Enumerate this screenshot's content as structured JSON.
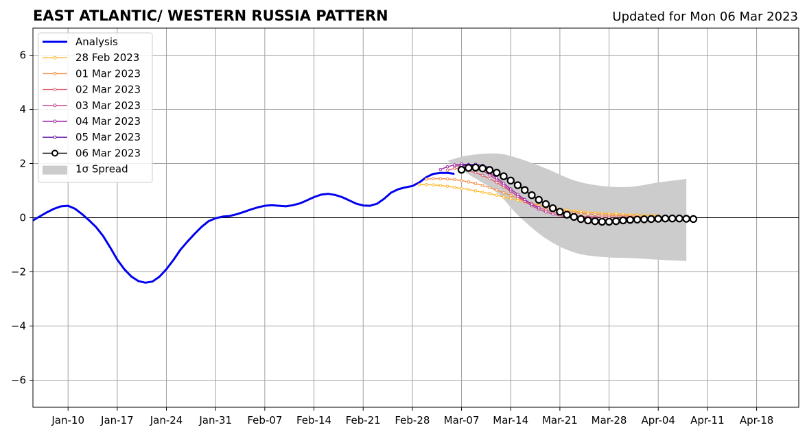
{
  "chart_data": {
    "type": "line",
    "title": "EAST ATLANTIC/ WESTERN RUSSIA PATTERN",
    "subtitle": "Updated for Mon 06 Mar 2023",
    "xlabel": "",
    "ylabel": "",
    "xlim": [
      "2023-01-05",
      "2023-04-24"
    ],
    "ylim": [
      -7,
      7
    ],
    "grid": true,
    "legend_position": "top-left",
    "x_ticks": [
      "2023-01-10",
      "2023-01-17",
      "2023-01-24",
      "2023-01-31",
      "2023-02-07",
      "2023-02-14",
      "2023-02-21",
      "2023-02-28",
      "2023-03-07",
      "2023-03-14",
      "2023-03-21",
      "2023-03-28",
      "2023-04-04",
      "2023-04-11",
      "2023-04-18"
    ],
    "x_tick_labels": [
      "Jan-10",
      "Jan-17",
      "Jan-24",
      "Jan-31",
      "Feb-07",
      "Feb-14",
      "Feb-21",
      "Feb-28",
      "Mar-07",
      "Mar-14",
      "Mar-21",
      "Mar-28",
      "Apr-04",
      "Apr-11",
      "Apr-18"
    ],
    "y_ticks": [
      -6,
      -4,
      -2,
      0,
      2,
      4,
      6
    ],
    "y_tick_labels": [
      "−6",
      "−4",
      "−2",
      "0",
      "2",
      "4",
      "6"
    ],
    "series": [
      {
        "name": "Analysis",
        "color": "#0000ee",
        "marker": "none",
        "start": "2023-01-05",
        "values": [
          -0.1,
          0.05,
          0.2,
          0.33,
          0.42,
          0.44,
          0.33,
          0.13,
          -0.1,
          -0.35,
          -0.68,
          -1.1,
          -1.55,
          -1.9,
          -2.17,
          -2.34,
          -2.4,
          -2.36,
          -2.18,
          -1.9,
          -1.56,
          -1.18,
          -0.88,
          -0.6,
          -0.34,
          -0.13,
          -0.02,
          0.04,
          0.06,
          0.13,
          0.21,
          0.3,
          0.38,
          0.44,
          0.46,
          0.44,
          0.42,
          0.46,
          0.53,
          0.64,
          0.76,
          0.85,
          0.88,
          0.84,
          0.76,
          0.64,
          0.52,
          0.45,
          0.44,
          0.52,
          0.7,
          0.93,
          1.05,
          1.12,
          1.17,
          1.3,
          1.5,
          1.62,
          1.65,
          1.65,
          1.62
        ]
      },
      {
        "name": "28 Feb 2023",
        "color": "#ffb626",
        "marker": "dot",
        "start": "2023-03-01",
        "values": [
          1.22,
          1.22,
          1.21,
          1.19,
          1.16,
          1.12,
          1.08,
          1.04,
          0.99,
          0.94,
          0.89,
          0.83,
          0.76,
          0.7,
          0.64,
          0.58,
          0.52,
          0.46,
          0.41,
          0.36,
          0.32,
          0.28,
          0.25,
          0.22,
          0.2,
          0.18,
          0.16,
          0.15,
          0.14,
          0.13,
          0.12,
          0.11,
          0.1,
          0.09,
          0.08
        ]
      },
      {
        "name": "01 Mar 2023",
        "color": "#f68b41",
        "marker": "dot",
        "start": "2023-03-02",
        "values": [
          1.42,
          1.44,
          1.44,
          1.43,
          1.41,
          1.37,
          1.32,
          1.26,
          1.19,
          1.11,
          1.02,
          0.92,
          0.82,
          0.72,
          0.62,
          0.53,
          0.45,
          0.38,
          0.32,
          0.27,
          0.23,
          0.19,
          0.16,
          0.14,
          0.12,
          0.1,
          0.09,
          0.08,
          0.07,
          0.06,
          0.05,
          0.04
        ]
      },
      {
        "name": "02 Mar 2023",
        "color": "#e06070",
        "marker": "dot",
        "start": "2023-03-05",
        "values": [
          1.75,
          1.82,
          1.8,
          1.74,
          1.66,
          1.56,
          1.44,
          1.3,
          1.14,
          0.97,
          0.8,
          0.64,
          0.5,
          0.38,
          0.28,
          0.2,
          0.14,
          0.1,
          0.07,
          0.05,
          0.04,
          0.03,
          0.02,
          0.02,
          0.02,
          0.02,
          0.02
        ]
      },
      {
        "name": "03 Mar 2023",
        "color": "#c1458f",
        "marker": "dot",
        "start": "2023-03-06",
        "values": [
          1.9,
          1.93,
          1.9,
          1.83,
          1.73,
          1.58,
          1.4,
          1.2,
          0.99,
          0.78,
          0.6,
          0.44,
          0.31,
          0.21,
          0.13,
          0.07,
          0.03,
          0.01,
          0.0,
          0.0,
          0.0
        ]
      },
      {
        "name": "04 Mar 2023",
        "color": "#9d23a8",
        "marker": "dot",
        "start": "2023-03-04",
        "values": [
          1.78,
          1.88,
          1.95,
          1.98,
          1.96,
          1.9,
          1.8,
          1.65,
          1.47,
          1.27,
          1.06,
          0.86,
          0.67,
          0.5,
          0.36
        ]
      },
      {
        "name": "05 Mar 2023",
        "color": "#5b0fa8",
        "marker": "dot",
        "start": "2023-03-07",
        "values": [
          1.93,
          1.96,
          1.97,
          1.93,
          1.85
        ]
      },
      {
        "name": "06 Mar 2023",
        "color": "#000000",
        "marker": "circle",
        "start": "2023-03-07",
        "values": [
          1.77,
          1.84,
          1.85,
          1.82,
          1.76,
          1.66,
          1.53,
          1.37,
          1.2,
          1.02,
          0.83,
          0.66,
          0.5,
          0.35,
          0.22,
          0.11,
          0.03,
          -0.05,
          -0.1,
          -0.13,
          -0.15,
          -0.15,
          -0.13,
          -0.1,
          -0.08,
          -0.07,
          -0.06,
          -0.05,
          -0.04,
          -0.03,
          -0.03,
          -0.03,
          -0.04,
          -0.05
        ]
      }
    ],
    "spread": {
      "name": "1σ Spread",
      "color": "#cccccc",
      "start": "2023-03-05",
      "days": [
        0,
        3,
        7,
        10,
        14,
        18,
        22,
        26,
        30,
        34
      ],
      "upper": [
        2.1,
        2.3,
        2.37,
        2.2,
        1.82,
        1.38,
        1.17,
        1.14,
        1.3,
        1.43
      ],
      "lower": [
        2.1,
        1.6,
        0.94,
        0.1,
        -0.77,
        -1.28,
        -1.45,
        -1.49,
        -1.55,
        -1.6
      ],
      "end_day": 34,
      "end_upper": 1.55,
      "end_lower": -1.65
    }
  }
}
